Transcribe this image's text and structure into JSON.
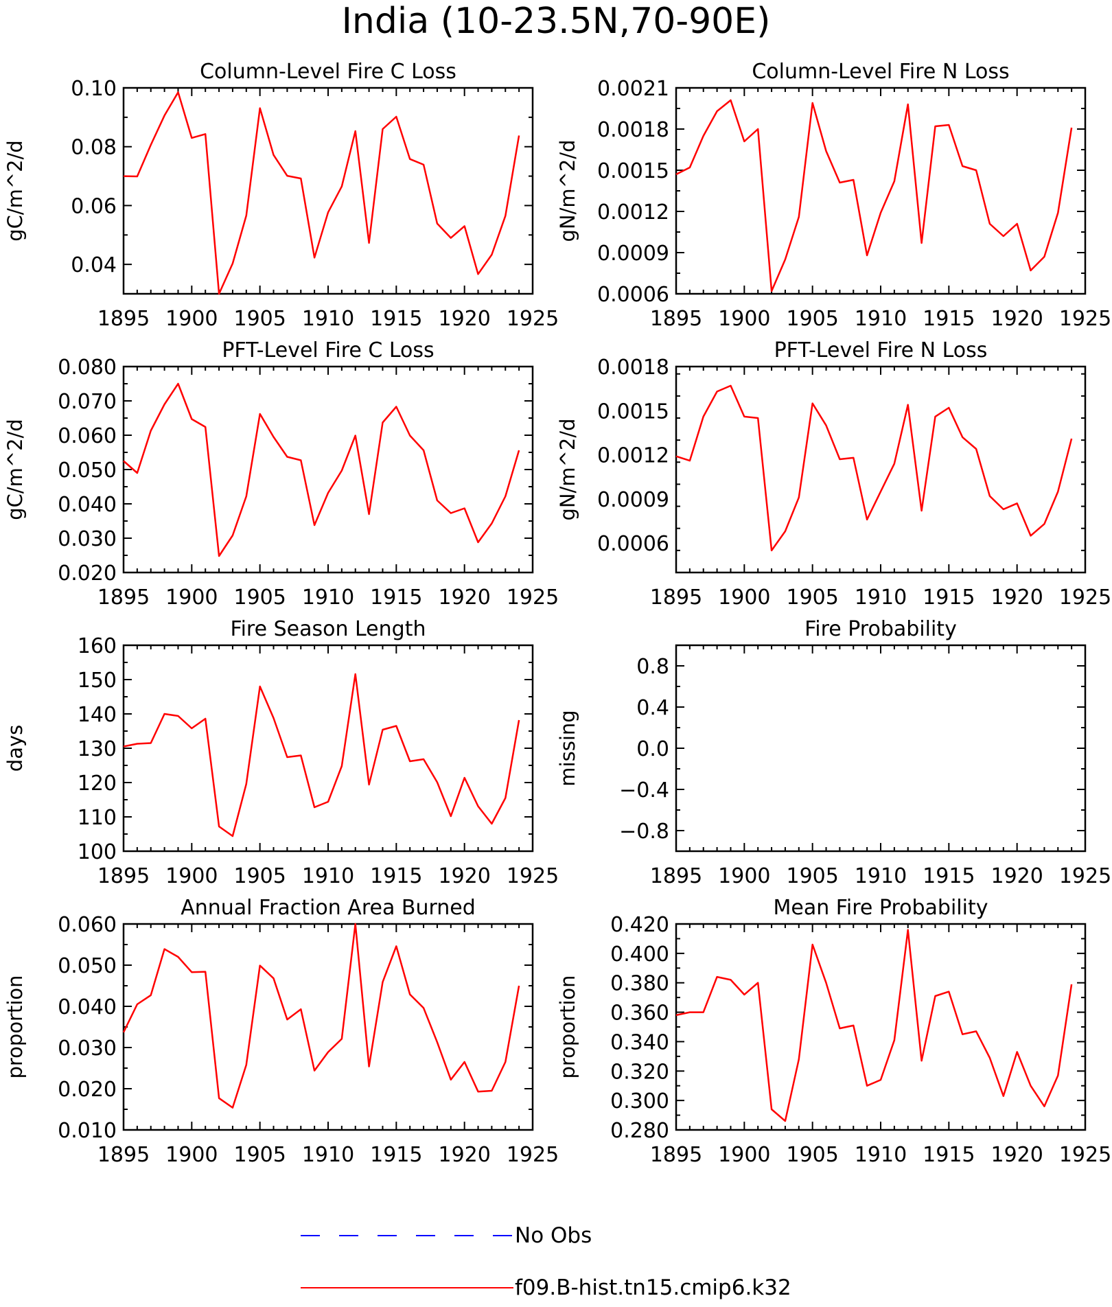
{
  "figure_title": "India (10-23.5N,70-90E)",
  "legend": {
    "entries": [
      {
        "label": "No Obs",
        "color": "#0000ff",
        "dash": true
      },
      {
        "label": "f09.B-hist.tn15.cmip6.k32",
        "color": "#ff0000",
        "dash": false
      }
    ]
  },
  "chart_data": [
    {
      "type": "line",
      "title": "Column-Level Fire C Loss",
      "ylabel": "gC/m^2/d",
      "xlim": [
        1895,
        1925
      ],
      "ylim": [
        0.03,
        0.1
      ],
      "xticks": [
        "1895",
        "1900",
        "1905",
        "1910",
        "1915",
        "1920",
        "1925"
      ],
      "yticks": [
        "0.04",
        "0.06",
        "0.08",
        "0.10"
      ],
      "x": [
        1895,
        1896,
        1897,
        1898,
        1899,
        1900,
        1901,
        1902,
        1903,
        1904,
        1905,
        1906,
        1907,
        1908,
        1909,
        1910,
        1911,
        1912,
        1913,
        1914,
        1915,
        1916,
        1917,
        1918,
        1919,
        1920,
        1921,
        1922,
        1923,
        1924
      ],
      "series": [
        {
          "color": "#ff0000",
          "values": [
            0.07,
            0.0699,
            0.0806,
            0.0906,
            0.0985,
            0.083,
            0.0843,
            0.03,
            0.0403,
            0.0566,
            0.0931,
            0.0772,
            0.0701,
            0.0692,
            0.0423,
            0.0577,
            0.0665,
            0.0853,
            0.0473,
            0.086,
            0.0902,
            0.0758,
            0.0739,
            0.0539,
            0.049,
            0.053,
            0.0367,
            0.0433,
            0.0565,
            0.0838
          ]
        }
      ]
    },
    {
      "type": "line",
      "title": "Column-Level Fire N Loss",
      "ylabel": "gN/m^2/d",
      "xlim": [
        1895,
        1925
      ],
      "ylim": [
        0.0006,
        0.0021
      ],
      "xticks": [
        "1895",
        "1900",
        "1905",
        "1910",
        "1915",
        "1920",
        "1925"
      ],
      "yticks": [
        "0.0006",
        "0.0009",
        "0.0012",
        "0.0015",
        "0.0018",
        "0.0021"
      ],
      "x": [
        1895,
        1896,
        1897,
        1898,
        1899,
        1900,
        1901,
        1902,
        1903,
        1904,
        1905,
        1906,
        1907,
        1908,
        1909,
        1910,
        1911,
        1912,
        1913,
        1914,
        1915,
        1916,
        1917,
        1918,
        1919,
        1920,
        1921,
        1922,
        1923,
        1924
      ],
      "series": [
        {
          "color": "#ff0000",
          "values": [
            0.00147,
            0.00152,
            0.00175,
            0.00193,
            0.00201,
            0.00171,
            0.0018,
            0.00062,
            0.00085,
            0.00116,
            0.00199,
            0.00164,
            0.00141,
            0.00143,
            0.00088,
            0.00119,
            0.00142,
            0.00198,
            0.00097,
            0.00182,
            0.00183,
            0.00153,
            0.0015,
            0.00111,
            0.00102,
            0.00111,
            0.00077,
            0.00087,
            0.00119,
            0.00181
          ]
        }
      ]
    },
    {
      "type": "line",
      "title": "PFT-Level Fire C Loss",
      "ylabel": "gC/m^2/d",
      "xlim": [
        1895,
        1925
      ],
      "ylim": [
        0.02,
        0.08
      ],
      "xticks": [
        "1895",
        "1900",
        "1905",
        "1910",
        "1915",
        "1920",
        "1925"
      ],
      "yticks": [
        "0.020",
        "0.030",
        "0.040",
        "0.050",
        "0.060",
        "0.070",
        "0.080"
      ],
      "x": [
        1895,
        1896,
        1897,
        1898,
        1899,
        1900,
        1901,
        1902,
        1903,
        1904,
        1905,
        1906,
        1907,
        1908,
        1909,
        1910,
        1911,
        1912,
        1913,
        1914,
        1915,
        1916,
        1917,
        1918,
        1919,
        1920,
        1921,
        1922,
        1923,
        1924
      ],
      "series": [
        {
          "color": "#ff0000",
          "values": [
            0.0525,
            0.049,
            0.0613,
            0.069,
            0.075,
            0.0647,
            0.0624,
            0.0248,
            0.0308,
            0.0422,
            0.0662,
            0.0595,
            0.0537,
            0.0527,
            0.0338,
            0.0432,
            0.0497,
            0.0599,
            0.037,
            0.0637,
            0.0683,
            0.0599,
            0.0556,
            0.041,
            0.0373,
            0.0387,
            0.0288,
            0.0343,
            0.0422,
            0.0556
          ]
        }
      ]
    },
    {
      "type": "line",
      "title": "PFT-Level Fire N Loss",
      "ylabel": "gN/m^2/d",
      "xlim": [
        1895,
        1925
      ],
      "ylim": [
        0.0004,
        0.0018
      ],
      "xticks": [
        "1895",
        "1900",
        "1905",
        "1910",
        "1915",
        "1920",
        "1925"
      ],
      "yticks": [
        "0.0006",
        "0.0009",
        "0.0012",
        "0.0015",
        "0.0018"
      ],
      "x": [
        1895,
        1896,
        1897,
        1898,
        1899,
        1900,
        1901,
        1902,
        1903,
        1904,
        1905,
        1906,
        1907,
        1908,
        1909,
        1910,
        1911,
        1912,
        1913,
        1914,
        1915,
        1916,
        1917,
        1918,
        1919,
        1920,
        1921,
        1922,
        1923,
        1924
      ],
      "series": [
        {
          "color": "#ff0000",
          "values": [
            0.00119,
            0.00116,
            0.00146,
            0.00163,
            0.00167,
            0.00146,
            0.00145,
            0.00055,
            0.00068,
            0.00091,
            0.00155,
            0.0014,
            0.00117,
            0.00118,
            0.00076,
            0.00095,
            0.00114,
            0.00154,
            0.00082,
            0.00146,
            0.00152,
            0.00132,
            0.00124,
            0.00092,
            0.00083,
            0.00087,
            0.00065,
            0.00073,
            0.00095,
            0.00131
          ]
        }
      ]
    },
    {
      "type": "line",
      "title": "Fire Season Length",
      "ylabel": "days",
      "xlim": [
        1895,
        1925
      ],
      "ylim": [
        100,
        160
      ],
      "xticks": [
        "1895",
        "1900",
        "1905",
        "1910",
        "1915",
        "1920",
        "1925"
      ],
      "yticks": [
        "100",
        "110",
        "120",
        "130",
        "140",
        "150",
        "160"
      ],
      "x": [
        1895,
        1896,
        1897,
        1898,
        1899,
        1900,
        1901,
        1902,
        1903,
        1904,
        1905,
        1906,
        1907,
        1908,
        1909,
        1910,
        1911,
        1912,
        1913,
        1914,
        1915,
        1916,
        1917,
        1918,
        1919,
        1920,
        1921,
        1922,
        1923,
        1924
      ],
      "series": [
        {
          "color": "#ff0000",
          "values": [
            130.5,
            131.3,
            131.5,
            140.0,
            139.4,
            135.8,
            138.6,
            107.2,
            104.4,
            119.6,
            148.0,
            138.8,
            127.4,
            127.9,
            112.8,
            114.4,
            124.8,
            151.6,
            119.4,
            135.4,
            136.5,
            126.2,
            126.8,
            120.1,
            110.2,
            121.4,
            113.1,
            108.0,
            115.5,
            138.2
          ]
        }
      ]
    },
    {
      "type": "line",
      "title": "Fire Probability",
      "ylabel": "missing",
      "xlim": [
        1895,
        1925
      ],
      "ylim": [
        -1.0,
        1.0
      ],
      "xticks": [
        "1895",
        "1900",
        "1905",
        "1910",
        "1915",
        "1920",
        "1925"
      ],
      "yticks": [
        "−0.8",
        "−0.4",
        "0.0",
        "0.4",
        "0.8"
      ],
      "x": [],
      "series": []
    },
    {
      "type": "line",
      "title": "Annual Fraction Area Burned",
      "ylabel": "proportion",
      "xlim": [
        1895,
        1925
      ],
      "ylim": [
        0.01,
        0.06
      ],
      "xticks": [
        "1895",
        "1900",
        "1905",
        "1910",
        "1915",
        "1920",
        "1925"
      ],
      "yticks": [
        "0.010",
        "0.020",
        "0.030",
        "0.040",
        "0.050",
        "0.060"
      ],
      "x": [
        1895,
        1896,
        1897,
        1898,
        1899,
        1900,
        1901,
        1902,
        1903,
        1904,
        1905,
        1906,
        1907,
        1908,
        1909,
        1910,
        1911,
        1912,
        1913,
        1914,
        1915,
        1916,
        1917,
        1918,
        1919,
        1920,
        1921,
        1922,
        1923,
        1924
      ],
      "series": [
        {
          "color": "#ff0000",
          "values": [
            0.0337,
            0.0405,
            0.0427,
            0.0539,
            0.052,
            0.0483,
            0.0484,
            0.0177,
            0.0154,
            0.0258,
            0.0499,
            0.0468,
            0.0368,
            0.0393,
            0.0244,
            0.0289,
            0.0321,
            0.06,
            0.0254,
            0.0459,
            0.0546,
            0.0429,
            0.0396,
            0.0313,
            0.0222,
            0.0265,
            0.0193,
            0.0195,
            0.0265,
            0.045
          ]
        }
      ]
    },
    {
      "type": "line",
      "title": "Mean Fire Probability",
      "ylabel": "proportion",
      "xlim": [
        1895,
        1925
      ],
      "ylim": [
        0.28,
        0.42
      ],
      "xticks": [
        "1895",
        "1900",
        "1905",
        "1910",
        "1915",
        "1920",
        "1925"
      ],
      "yticks": [
        "0.280",
        "0.300",
        "0.320",
        "0.340",
        "0.360",
        "0.380",
        "0.400",
        "0.420"
      ],
      "x": [
        1895,
        1896,
        1897,
        1898,
        1899,
        1900,
        1901,
        1902,
        1903,
        1904,
        1905,
        1906,
        1907,
        1908,
        1909,
        1910,
        1911,
        1912,
        1913,
        1914,
        1915,
        1916,
        1917,
        1918,
        1919,
        1920,
        1921,
        1922,
        1923,
        1924
      ],
      "series": [
        {
          "color": "#ff0000",
          "values": [
            0.358,
            0.36,
            0.36,
            0.384,
            0.382,
            0.372,
            0.38,
            0.294,
            0.286,
            0.328,
            0.406,
            0.38,
            0.349,
            0.351,
            0.31,
            0.314,
            0.341,
            0.416,
            0.327,
            0.371,
            0.374,
            0.345,
            0.347,
            0.329,
            0.303,
            0.333,
            0.31,
            0.296,
            0.317,
            0.379
          ]
        }
      ]
    }
  ]
}
